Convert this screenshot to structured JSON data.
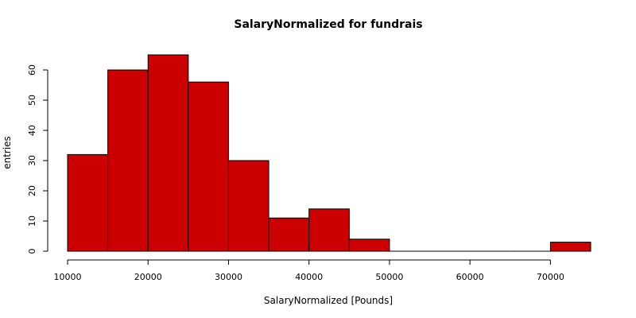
{
  "chart_data": {
    "type": "bar",
    "subtype": "histogram",
    "title": "SalaryNormalized for fundrais",
    "xlabel": "SalaryNormalized [Pounds]",
    "ylabel": "entries",
    "bins": [
      {
        "x0": 10000,
        "x1": 15000,
        "count": 32
      },
      {
        "x0": 15000,
        "x1": 20000,
        "count": 60
      },
      {
        "x0": 20000,
        "x1": 25000,
        "count": 65
      },
      {
        "x0": 25000,
        "x1": 30000,
        "count": 56
      },
      {
        "x0": 30000,
        "x1": 35000,
        "count": 30
      },
      {
        "x0": 35000,
        "x1": 40000,
        "count": 11
      },
      {
        "x0": 40000,
        "x1": 45000,
        "count": 14
      },
      {
        "x0": 45000,
        "x1": 50000,
        "count": 4
      },
      {
        "x0": 50000,
        "x1": 55000,
        "count": 0
      },
      {
        "x0": 55000,
        "x1": 60000,
        "count": 0
      },
      {
        "x0": 60000,
        "x1": 65000,
        "count": 0
      },
      {
        "x0": 65000,
        "x1": 70000,
        "count": 0
      },
      {
        "x0": 70000,
        "x1": 75000,
        "count": 3
      }
    ],
    "xlim": [
      10000,
      75000
    ],
    "ylim": [
      0,
      60
    ],
    "xticks": [
      10000,
      20000,
      30000,
      40000,
      50000,
      60000,
      70000
    ],
    "yticks": [
      0,
      10,
      20,
      30,
      40,
      50,
      60
    ],
    "bar_color": "#cc0000",
    "grid": false,
    "legend": "none"
  }
}
